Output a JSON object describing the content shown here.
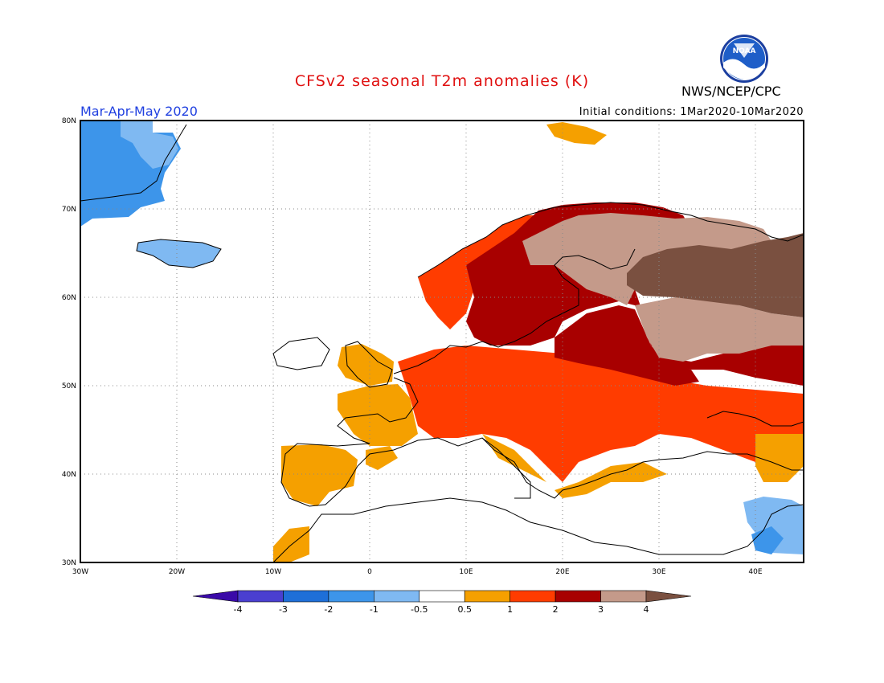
{
  "header": {
    "title": "CFSv2 seasonal T2m anomalies (K)",
    "agency": "NWS/NCEP/CPC",
    "logo_text": "NOAA",
    "season": "Mar-Apr-May 2020",
    "initial_conditions": "Initial conditions: 1Mar2020-10Mar2020"
  },
  "map": {
    "lon_range": [
      -30,
      45
    ],
    "lat_range": [
      30,
      80
    ],
    "lon_ticks": [
      "30W",
      "20W",
      "10W",
      "0",
      "10E",
      "20E",
      "30E",
      "40E"
    ],
    "lat_ticks": [
      "80N",
      "70N",
      "60N",
      "50N",
      "40N",
      "30N"
    ],
    "grid": "dotted",
    "regions": [
      {
        "name": "Greenland",
        "anomaly_class": "-1 to -0.5 / -2 to -1"
      },
      {
        "name": "Iceland",
        "anomaly_class": "-1 to -0.5"
      },
      {
        "name": "Iberia",
        "anomaly_class": "0.5 to 1"
      },
      {
        "name": "France / UK",
        "anomaly_class": "0.5 to 1"
      },
      {
        "name": "Central Europe",
        "anomaly_class": "1 to 2"
      },
      {
        "name": "Scandinavia / Baltics",
        "anomaly_class": "2 to 3"
      },
      {
        "name": "Northern Russia",
        "anomaly_class": "3 to 4 / >4"
      },
      {
        "name": "Eastern Mediterranean",
        "anomaly_class": "-1 to -0.5"
      }
    ]
  },
  "legend": {
    "labels": [
      "-4",
      "-3",
      "-2",
      "-1",
      "-0.5",
      "0.5",
      "1",
      "2",
      "3",
      "4"
    ],
    "colors": [
      "#3a0aa8",
      "#4a3fd0",
      "#1e6fd8",
      "#3d95ea",
      "#7fb9f2",
      "#ffffff",
      "#f5a000",
      "#ff3c00",
      "#a80000",
      "#c49a8a",
      "#7a5040"
    ]
  }
}
